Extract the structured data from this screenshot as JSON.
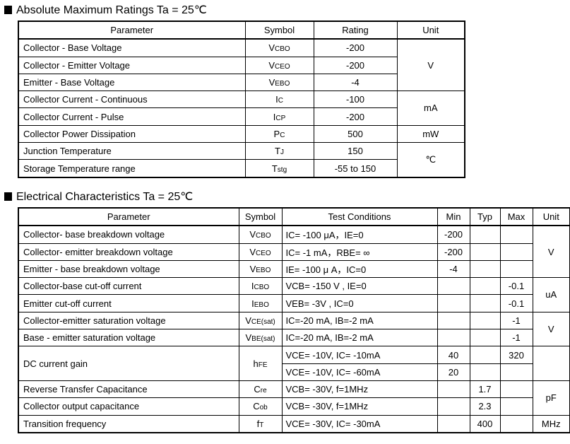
{
  "section1": {
    "title": "Absolute Maximum Ratings Ta = 25℃",
    "headers": [
      "Parameter",
      "Symbol",
      "Rating",
      "Unit"
    ],
    "rows": [
      {
        "param": "Collector - Base Voltage",
        "sym": "V",
        "sub": "CBO",
        "rating": "-200"
      },
      {
        "param": "Collector - Emitter Voltage",
        "sym": "V",
        "sub": "CEO",
        "rating": "-200"
      },
      {
        "param": "Emitter - Base Voltage",
        "sym": "V",
        "sub": "EBO",
        "rating": "-4"
      },
      {
        "param": "Collector Current  - Continuous",
        "sym": "I",
        "sub": "C",
        "rating": "-100"
      },
      {
        "param": "Collector Current  - Pulse",
        "sym": "I",
        "sub": "CP",
        "rating": "-200"
      },
      {
        "param": "Collector Power Dissipation",
        "sym": "P",
        "sub": "C",
        "rating": "500"
      },
      {
        "param": "Junction Temperature",
        "sym": "T",
        "sub": "J",
        "rating": "150"
      },
      {
        "param": "Storage Temperature range",
        "sym": "T",
        "sub": "stg",
        "rating": "-55 to 150"
      }
    ],
    "units": [
      {
        "label": "V",
        "span": 3
      },
      {
        "label": "mA",
        "span": 2
      },
      {
        "label": "mW",
        "span": 1
      },
      {
        "label": "℃",
        "span": 2
      }
    ]
  },
  "section2": {
    "title": "Electrical Characteristics Ta = 25℃",
    "headers": [
      "Parameter",
      "Symbol",
      "Test Conditions",
      "Min",
      "Typ",
      "Max",
      "Unit"
    ],
    "rows": [
      {
        "param": "Collector- base breakdown voltage",
        "sym": "V",
        "sub": "CBO",
        "cond": "IC= -100 μA，IE=0",
        "min": "-200",
        "typ": "",
        "max": ""
      },
      {
        "param": "Collector- emitter breakdown voltage",
        "sym": "V",
        "sub": "CEO",
        "cond": "IC= -1 mA，RBE= ∞",
        "min": "-200",
        "typ": "",
        "max": ""
      },
      {
        "param": "Emitter - base breakdown voltage",
        "sym": "V",
        "sub": "EBO",
        "cond": "IE= -100 μ A，IC=0",
        "min": "-4",
        "typ": "",
        "max": ""
      },
      {
        "param": "Collector-base cut-off current",
        "sym": "I",
        "sub": "CBO",
        "cond": "VCB= -150 V , IE=0",
        "min": "",
        "typ": "",
        "max": "-0.1"
      },
      {
        "param": "Emitter cut-off current",
        "sym": "I",
        "sub": "EBO",
        "cond": "VEB= -3V , IC=0",
        "min": "",
        "typ": "",
        "max": "-0.1"
      },
      {
        "param": "Collector-emitter saturation voltage",
        "sym": "V",
        "sub": "CE(sat)",
        "cond": "IC=-20 mA, IB=-2 mA",
        "min": "",
        "typ": "",
        "max": "-1"
      },
      {
        "param": "Base - emitter saturation voltage",
        "sym": "V",
        "sub": "BE(sat)",
        "cond": "IC=-20 mA, IB=-2 mA",
        "min": "",
        "typ": "",
        "max": "-1"
      },
      {
        "param": "DC current gain",
        "sym": "h",
        "sub": "FE",
        "span": 2,
        "cond": "VCE= -10V, IC= -10mA",
        "min": "40",
        "typ": "",
        "max": "320"
      },
      {
        "cond": "VCE= -10V, IC= -60mA",
        "min": "20",
        "typ": "",
        "max": ""
      },
      {
        "param": "Reverse Transfer Capacitance",
        "sym": "C",
        "sub": "re",
        "cond": "VCB= -30V, f=1MHz",
        "min": "",
        "typ": "1.7",
        "max": ""
      },
      {
        "param": "Collector output  capacitance",
        "sym": "C",
        "sub": "ob",
        "cond": "VCB= -30V, f=1MHz",
        "min": "",
        "typ": "2.3",
        "max": ""
      },
      {
        "param": "Transition frequency",
        "sym": "f",
        "sub": "T",
        "cond": "VCE= -30V, IC= -30mA",
        "min": "",
        "typ": "400",
        "max": ""
      }
    ],
    "units": [
      {
        "label": "V",
        "span": 3
      },
      {
        "label": "uA",
        "span": 2
      },
      {
        "label": "V",
        "span": 2
      },
      {
        "label": "",
        "span": 2
      },
      {
        "label": "pF",
        "span": 2
      },
      {
        "label": "MHz",
        "span": 1
      }
    ]
  }
}
